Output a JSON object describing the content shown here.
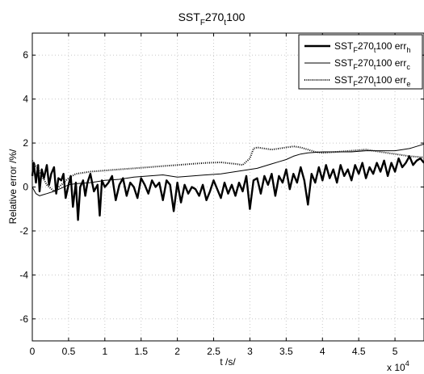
{
  "chart_data": {
    "type": "line",
    "title": {
      "main": "SST",
      "sub1": "F",
      "mid": "270",
      "sub2": "t",
      "end": "100"
    },
    "xlabel": "t /s/",
    "ylabel": "Relative error /%/",
    "x_multiplier": {
      "base": "x 10",
      "exp": "4"
    },
    "xlim": [
      0,
      5.4
    ],
    "ylim": [
      -7,
      7
    ],
    "xticks": [
      0,
      0.5,
      1,
      1.5,
      2,
      2.5,
      3,
      3.5,
      4,
      4.5,
      5
    ],
    "xtick_labels": [
      "0",
      "0.5",
      "1",
      "1.5",
      "2",
      "2.5",
      "3",
      "3.5",
      "4",
      "4.5",
      "5"
    ],
    "yticks": [
      -6,
      -4,
      -2,
      0,
      2,
      4,
      6
    ],
    "ytick_labels": [
      "-6",
      "-4",
      "-2",
      "0",
      "2",
      "4",
      "6"
    ],
    "grid": true,
    "legend_position": "top-right",
    "series": [
      {
        "name": {
          "p1": "SST",
          "s1": "F",
          "p2": "270",
          "s2": "t",
          "p3": "100 err",
          "s3": "h"
        },
        "style": "thick",
        "x": [
          0,
          0.02,
          0.05,
          0.08,
          0.1,
          0.13,
          0.16,
          0.2,
          0.23,
          0.26,
          0.3,
          0.33,
          0.36,
          0.4,
          0.43,
          0.46,
          0.5,
          0.53,
          0.56,
          0.6,
          0.63,
          0.66,
          0.7,
          0.73,
          0.76,
          0.8,
          0.85,
          0.9,
          0.93,
          0.96,
          1.0,
          1.05,
          1.1,
          1.15,
          1.2,
          1.25,
          1.3,
          1.35,
          1.4,
          1.45,
          1.5,
          1.55,
          1.6,
          1.65,
          1.7,
          1.75,
          1.8,
          1.85,
          1.9,
          1.95,
          2.0,
          2.05,
          2.1,
          2.15,
          2.2,
          2.25,
          2.3,
          2.35,
          2.4,
          2.45,
          2.5,
          2.55,
          2.6,
          2.65,
          2.7,
          2.75,
          2.8,
          2.85,
          2.9,
          2.95,
          3.0,
          3.05,
          3.1,
          3.15,
          3.2,
          3.25,
          3.3,
          3.35,
          3.4,
          3.45,
          3.5,
          3.55,
          3.6,
          3.65,
          3.7,
          3.75,
          3.8,
          3.85,
          3.9,
          3.95,
          4.0,
          4.05,
          4.1,
          4.15,
          4.2,
          4.25,
          4.3,
          4.35,
          4.4,
          4.45,
          4.5,
          4.55,
          4.6,
          4.65,
          4.7,
          4.75,
          4.8,
          4.85,
          4.9,
          4.95,
          5.0,
          5.05,
          5.1,
          5.15,
          5.2,
          5.25,
          5.3,
          5.35,
          5.4
        ],
        "y": [
          0.5,
          1.1,
          0.2,
          1.0,
          -0.2,
          0.8,
          0.4,
          1.0,
          0.1,
          0.6,
          0.9,
          -0.3,
          0.4,
          0.3,
          0.6,
          -0.5,
          0.1,
          0.5,
          -0.9,
          0.2,
          -1.5,
          0.0,
          0.3,
          -0.4,
          0.2,
          0.6,
          -0.2,
          0.1,
          -1.3,
          0.3,
          0.0,
          0.2,
          0.5,
          -0.6,
          0.1,
          0.4,
          -0.4,
          0.2,
          0.0,
          -0.5,
          0.4,
          0.1,
          -0.3,
          0.3,
          0.0,
          0.2,
          -0.6,
          0.3,
          0.1,
          -1.1,
          0.2,
          -0.7,
          0.1,
          -0.3,
          0.0,
          -0.1,
          -0.4,
          0.1,
          -0.6,
          -0.2,
          0.3,
          -0.1,
          -0.5,
          0.2,
          -0.3,
          0.1,
          -0.4,
          0.2,
          -0.2,
          0.5,
          -1.0,
          0.3,
          0.4,
          -0.3,
          0.5,
          0.1,
          0.6,
          -0.4,
          0.5,
          0.2,
          0.8,
          -0.1,
          0.6,
          0.2,
          0.9,
          0.3,
          -0.8,
          0.6,
          0.2,
          0.9,
          0.3,
          1.0,
          0.4,
          0.8,
          0.2,
          1.0,
          0.5,
          0.8,
          0.3,
          1.0,
          0.6,
          1.1,
          0.4,
          0.9,
          0.6,
          1.1,
          0.7,
          1.2,
          0.5,
          1.1,
          0.7,
          1.3,
          0.9,
          1.1,
          1.4,
          1.0,
          1.2,
          1.3,
          1.1
        ],
        "color": "#000000"
      },
      {
        "name": {
          "p1": "SST",
          "s1": "F",
          "p2": "270",
          "s2": "t",
          "p3": "100 err",
          "s3": "c"
        },
        "style": "thin",
        "x": [
          0,
          0.05,
          0.1,
          0.15,
          0.2,
          0.3,
          0.4,
          0.5,
          0.6,
          0.8,
          1.0,
          1.2,
          1.4,
          1.6,
          1.8,
          2.0,
          2.2,
          2.4,
          2.6,
          2.8,
          2.9,
          3.0,
          3.1,
          3.2,
          3.3,
          3.4,
          3.5,
          3.6,
          3.7,
          3.8,
          4.0,
          4.2,
          4.4,
          4.6,
          4.8,
          5.0,
          5.1,
          5.2,
          5.3,
          5.4
        ],
        "y": [
          0.0,
          -0.3,
          -0.4,
          -0.35,
          -0.3,
          -0.2,
          -0.05,
          0.1,
          0.15,
          0.2,
          0.3,
          0.35,
          0.45,
          0.5,
          0.55,
          0.45,
          0.5,
          0.55,
          0.6,
          0.7,
          0.75,
          0.8,
          0.85,
          0.95,
          1.05,
          1.15,
          1.25,
          1.4,
          1.5,
          1.55,
          1.6,
          1.6,
          1.6,
          1.65,
          1.65,
          1.65,
          1.7,
          1.75,
          1.85,
          1.95
        ],
        "color": "#000000"
      },
      {
        "name": {
          "p1": "SST",
          "s1": "F",
          "p2": "270",
          "s2": "t",
          "p3": "100 err",
          "s3": "e"
        },
        "style": "dotted",
        "x": [
          0,
          0.1,
          0.2,
          0.3,
          0.4,
          0.5,
          0.6,
          0.8,
          1.0,
          1.2,
          1.4,
          1.6,
          1.8,
          2.0,
          2.2,
          2.4,
          2.6,
          2.8,
          2.9,
          3.0,
          3.05,
          3.1,
          3.2,
          3.3,
          3.4,
          3.5,
          3.6,
          3.7,
          3.8,
          3.9,
          4.0,
          4.2,
          4.4,
          4.6,
          4.8,
          5.0,
          5.2,
          5.4
        ],
        "y": [
          1.2,
          0.7,
          0.1,
          -0.2,
          0.1,
          0.4,
          0.6,
          0.7,
          0.75,
          0.8,
          0.85,
          0.9,
          0.95,
          1.0,
          1.05,
          1.1,
          1.12,
          1.05,
          1.0,
          1.3,
          1.75,
          1.8,
          1.75,
          1.7,
          1.75,
          1.8,
          1.85,
          1.8,
          1.7,
          1.6,
          1.55,
          1.6,
          1.65,
          1.7,
          1.6,
          1.5,
          1.4,
          1.35
        ],
        "color": "#000000"
      }
    ]
  }
}
